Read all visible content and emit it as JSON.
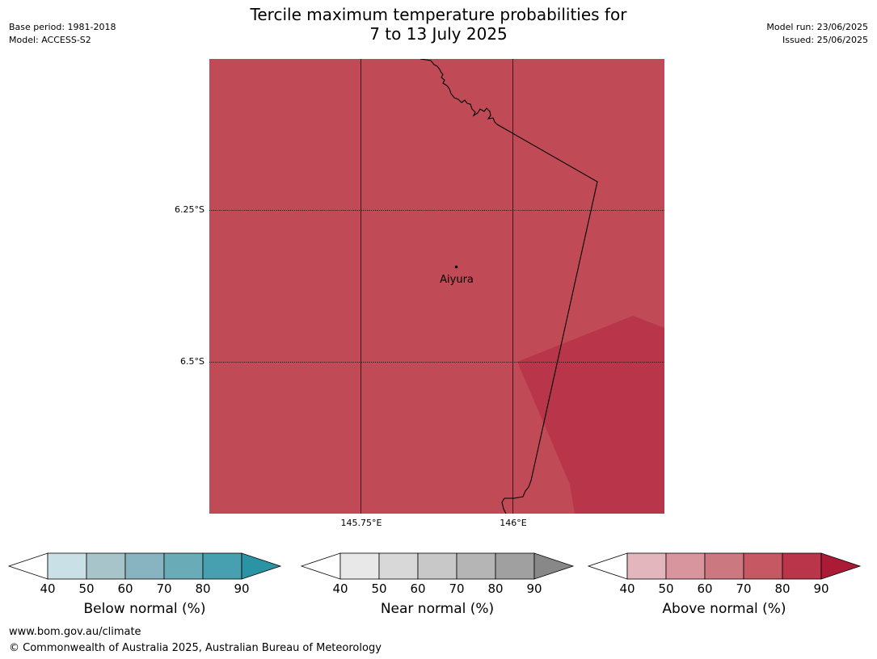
{
  "title_line1": "Tercile maximum temperature probabilities for",
  "title_line2": "7 to 13 July 2025",
  "meta_left": {
    "base_period": "Base period: 1981-2018",
    "model": "Model: ACCESS-S2"
  },
  "meta_right": {
    "model_run": "Model run: 23/06/2025",
    "issued": "Issued: 25/06/2025"
  },
  "map": {
    "lat_labels": [
      "6.25°S",
      "6.5°S"
    ],
    "lon_labels": [
      "145.75°E",
      "146°E"
    ],
    "location": {
      "name": "Aiyura"
    },
    "colors": {
      "base_fill": "#c04a56",
      "light_region": "#c34c58",
      "dark_region": "#b9364a",
      "border_line": "#000000"
    }
  },
  "colorbars": [
    {
      "label": "Below normal (%)",
      "ticks": [
        "40",
        "50",
        "60",
        "70",
        "80",
        "90"
      ],
      "colors": [
        "#ffffff",
        "#c9e1e6",
        "#a6c4c9",
        "#88b4c1",
        "#6aabb8",
        "#47a0af",
        "#2a94a4"
      ]
    },
    {
      "label": "Near normal (%)",
      "ticks": [
        "40",
        "50",
        "60",
        "70",
        "80",
        "90"
      ],
      "colors": [
        "#ffffff",
        "#e8e8e8",
        "#d8d8d8",
        "#c8c8c8",
        "#b5b5b5",
        "#a0a0a0",
        "#888888"
      ]
    },
    {
      "label": "Above normal (%)",
      "ticks": [
        "40",
        "50",
        "60",
        "70",
        "80",
        "90"
      ],
      "colors": [
        "#ffffff",
        "#e2b6bc",
        "#d8959d",
        "#cc7880",
        "#c55863",
        "#ba344a",
        "#ab1b36"
      ]
    }
  ],
  "footer": {
    "url": "www.bom.gov.au/climate",
    "copyright": "© Commonwealth of Australia 2025, Australian Bureau of Meteorology"
  }
}
